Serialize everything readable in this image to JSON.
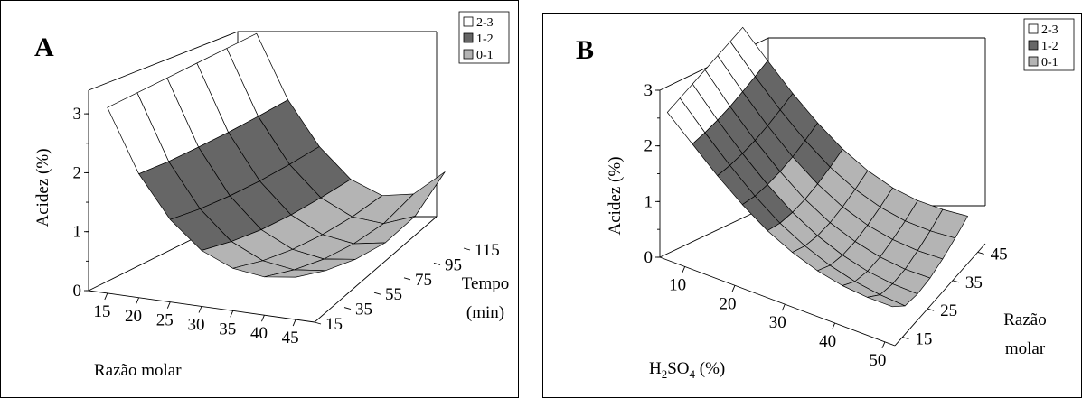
{
  "colors": {
    "band_2_3": "#ffffff",
    "band_1_2": "#666666",
    "band_0_1": "#b4b4b4"
  },
  "chart_data": [
    {
      "panel": "A",
      "type": "surface",
      "zlabel": "Acidez (%)",
      "xlabel": "Razão molar",
      "ylabel_line1": "Tempo",
      "ylabel_line2": "(min)",
      "x_ticks": [
        "15",
        "20",
        "25",
        "30",
        "35",
        "40",
        "45"
      ],
      "y_ticks": [
        "15",
        "35",
        "55",
        "75",
        "95",
        "115"
      ],
      "z_ticks": [
        "0",
        "1",
        "2",
        "3"
      ],
      "xlim": [
        12,
        48
      ],
      "ylim": [
        15,
        115
      ],
      "zlim": [
        0,
        3.4
      ],
      "legend": [
        {
          "label": "2-3",
          "color": "#ffffff"
        },
        {
          "label": "1-2",
          "color": "#666666"
        },
        {
          "label": "0-1",
          "color": "#b4b4b4"
        }
      ],
      "grid_x": [
        15,
        20,
        25,
        30,
        35,
        40,
        45
      ],
      "grid_y": [
        15,
        35,
        55,
        75,
        95,
        115
      ],
      "z_values": [
        [
          3.15,
          3.15,
          3.15,
          3.15,
          3.15,
          3.15
        ],
        [
          2.1,
          2.06,
          2.05,
          2.05,
          2.07,
          2.1
        ],
        [
          1.4,
          1.33,
          1.3,
          1.3,
          1.33,
          1.38
        ],
        [
          0.95,
          0.85,
          0.8,
          0.8,
          0.84,
          0.9
        ],
        [
          0.72,
          0.6,
          0.54,
          0.54,
          0.59,
          0.7
        ],
        [
          0.65,
          0.52,
          0.45,
          0.46,
          0.55,
          0.8
        ],
        [
          0.72,
          0.58,
          0.52,
          0.55,
          0.75,
          1.25
        ]
      ]
    },
    {
      "panel": "B",
      "type": "surface",
      "zlabel": "Acidez (%)",
      "xlabel_main": "H",
      "xlabel_sub1": "2",
      "xlabel_mid": "SO",
      "xlabel_sub2": "4",
      "xlabel_tail": " (%)",
      "ylabel_line1": "Razão",
      "ylabel_line2": "molar",
      "x_ticks": [
        "10",
        "20",
        "30",
        "40",
        "50"
      ],
      "y_ticks": [
        "15",
        "25",
        "35",
        "45"
      ],
      "z_ticks": [
        "0",
        "1",
        "2",
        "3"
      ],
      "xlim": [
        5,
        52
      ],
      "ylim": [
        12,
        48
      ],
      "zlim": [
        0,
        3
      ],
      "legend": [
        {
          "label": "2-3",
          "color": "#ffffff"
        },
        {
          "label": "1-2",
          "color": "#666666"
        },
        {
          "label": "0-1",
          "color": "#b4b4b4"
        }
      ],
      "grid_x": [
        5,
        10,
        15,
        20,
        25,
        30,
        35,
        40,
        45,
        50
      ],
      "grid_y": [
        15,
        20,
        25,
        30,
        35,
        40,
        45
      ],
      "z_values": [
        [
          2.45,
          2.45,
          2.45,
          2.45,
          2.45,
          2.45,
          2.45
        ],
        [
          2.05,
          2.0,
          1.97,
          1.96,
          1.97,
          1.99,
          2.02
        ],
        [
          1.65,
          1.58,
          1.54,
          1.52,
          1.53,
          1.56,
          1.6
        ],
        [
          1.3,
          1.2,
          1.15,
          1.13,
          1.14,
          1.18,
          1.24
        ],
        [
          1.0,
          0.88,
          0.82,
          0.8,
          0.82,
          0.87,
          0.94
        ],
        [
          0.78,
          0.64,
          0.57,
          0.55,
          0.58,
          0.64,
          0.72
        ],
        [
          0.62,
          0.46,
          0.39,
          0.38,
          0.42,
          0.49,
          0.58
        ],
        [
          0.52,
          0.34,
          0.27,
          0.27,
          0.33,
          0.41,
          0.52
        ],
        [
          0.48,
          0.27,
          0.21,
          0.22,
          0.3,
          0.4,
          0.53
        ],
        [
          0.48,
          0.24,
          0.2,
          0.23,
          0.32,
          0.44,
          0.58
        ]
      ]
    }
  ]
}
